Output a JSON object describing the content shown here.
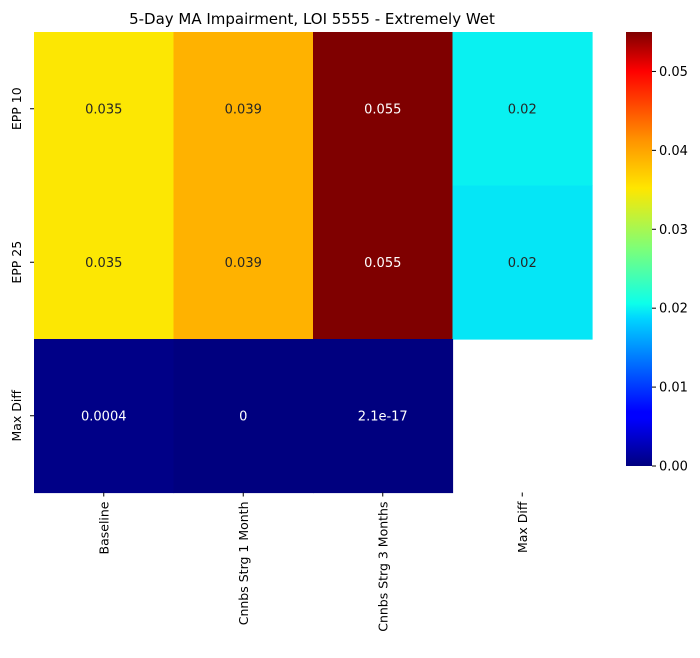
{
  "chart_data": {
    "type": "heatmap",
    "title": "5-Day MA Impairment, LOI 5555 - Extremely Wet",
    "rows": [
      "EPP 10",
      "EPP 25",
      "Max Diff"
    ],
    "columns": [
      "Baseline",
      "Cnnbs Strg 1 Month",
      "Cnnbs Strg 3 Months",
      "Max Diff"
    ],
    "values": [
      [
        0.035,
        0.039,
        0.055,
        0.02
      ],
      [
        0.035,
        0.039,
        0.055,
        0.0195
      ],
      [
        0.0004,
        0,
        2.1e-17,
        null
      ]
    ],
    "annotations": [
      [
        "0.035",
        "0.039",
        "0.055",
        "0.02"
      ],
      [
        "0.035",
        "0.039",
        "0.055",
        "0.02"
      ],
      [
        "0.0004",
        "0",
        "2.1e-17",
        ""
      ]
    ],
    "colormap": "jet",
    "vmin": 0,
    "vmax": 0.055,
    "colorbar_ticks": [
      "0.00",
      "0.01",
      "0.02",
      "0.03",
      "0.04",
      "0.05"
    ],
    "colorbar_tick_values": [
      0,
      0.01,
      0.02,
      0.03,
      0.04,
      0.05
    ]
  }
}
